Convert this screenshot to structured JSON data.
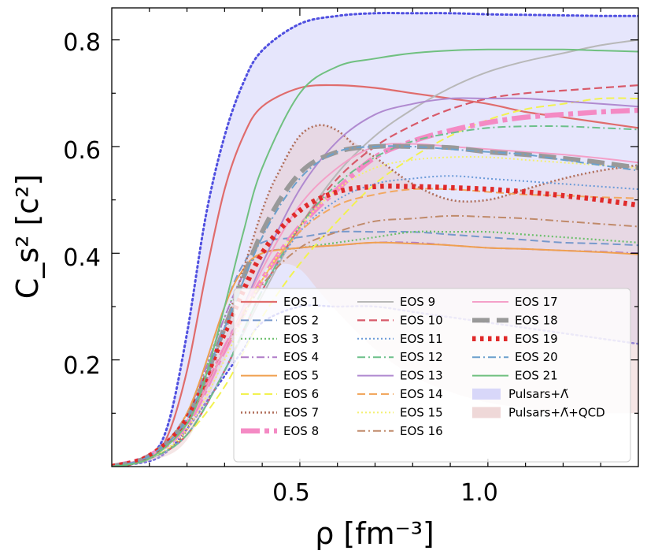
{
  "chart_data": {
    "type": "line",
    "title": "",
    "xlabel": "ρ [fm⁻³]",
    "ylabel": "C_s² [c²]",
    "xlim": [
      0.0,
      1.4
    ],
    "ylim": [
      0.0,
      0.86
    ],
    "xticks": [
      0.5,
      1.0
    ],
    "xtick_labels": [
      "0.5",
      "1.0"
    ],
    "yticks": [
      0.2,
      0.4,
      0.6,
      0.8
    ],
    "ytick_labels": [
      "0.2",
      "0.4",
      "0.6",
      "0.8"
    ],
    "grid": false,
    "legend_position": "lower-right",
    "legend_columns": 3,
    "series": [
      {
        "name": "EOS 1",
        "color": "#e06c6c",
        "dash": "solid",
        "width": 2.2,
        "x": [
          0.0,
          0.1,
          0.15,
          0.2,
          0.25,
          0.3,
          0.35,
          0.4,
          0.5,
          0.6,
          0.7,
          0.8,
          0.9,
          1.0,
          1.1,
          1.2,
          1.3,
          1.4
        ],
        "y": [
          0.0,
          0.015,
          0.06,
          0.18,
          0.36,
          0.52,
          0.62,
          0.675,
          0.71,
          0.715,
          0.71,
          0.7,
          0.69,
          0.68,
          0.665,
          0.655,
          0.645,
          0.635
        ]
      },
      {
        "name": "EOS 2",
        "color": "#7799cc",
        "dash": "10,5",
        "width": 2.0,
        "x": [
          0.0,
          0.1,
          0.2,
          0.3,
          0.35,
          0.4,
          0.5,
          0.6,
          0.7,
          0.8,
          0.9,
          1.0,
          1.1,
          1.2,
          1.3,
          1.4
        ],
        "y": [
          0.0,
          0.02,
          0.1,
          0.3,
          0.38,
          0.42,
          0.43,
          0.44,
          0.44,
          0.44,
          0.435,
          0.43,
          0.425,
          0.42,
          0.418,
          0.415
        ]
      },
      {
        "name": "EOS 3",
        "color": "#6cbf6c",
        "dash": "2,3",
        "width": 2.2,
        "x": [
          0.0,
          0.1,
          0.2,
          0.3,
          0.35,
          0.4,
          0.5,
          0.6,
          0.7,
          0.8,
          0.9,
          1.0,
          1.1,
          1.2,
          1.3,
          1.4
        ],
        "y": [
          0.0,
          0.02,
          0.1,
          0.28,
          0.36,
          0.4,
          0.41,
          0.42,
          0.43,
          0.44,
          0.44,
          0.44,
          0.435,
          0.43,
          0.425,
          0.42
        ]
      },
      {
        "name": "EOS 4",
        "color": "#b07cc8",
        "dash": "10,4,2,4",
        "width": 2.0,
        "x": [
          0.0,
          0.1,
          0.2,
          0.3,
          0.35,
          0.4,
          0.5,
          0.6,
          0.7,
          0.8,
          0.9,
          1.0,
          1.1,
          1.2,
          1.3,
          1.4
        ],
        "y": [
          0.0,
          0.02,
          0.1,
          0.28,
          0.36,
          0.4,
          0.41,
          0.415,
          0.42,
          0.42,
          0.415,
          0.41,
          0.408,
          0.405,
          0.403,
          0.4
        ]
      },
      {
        "name": "EOS 5",
        "color": "#f0a050",
        "dash": "solid",
        "width": 2.0,
        "x": [
          0.0,
          0.1,
          0.2,
          0.3,
          0.35,
          0.4,
          0.5,
          0.6,
          0.7,
          0.8,
          0.9,
          1.0,
          1.1,
          1.2,
          1.3,
          1.4
        ],
        "y": [
          0.0,
          0.02,
          0.1,
          0.3,
          0.37,
          0.4,
          0.41,
          0.415,
          0.42,
          0.418,
          0.415,
          0.41,
          0.408,
          0.405,
          0.402,
          0.398
        ]
      },
      {
        "name": "EOS 6",
        "color": "#f2f250",
        "dash": "10,5",
        "width": 2.0,
        "x": [
          0.0,
          0.1,
          0.2,
          0.3,
          0.4,
          0.5,
          0.6,
          0.7,
          0.8,
          0.9,
          1.0,
          1.1,
          1.2,
          1.3,
          1.4
        ],
        "y": [
          0.0,
          0.015,
          0.06,
          0.15,
          0.28,
          0.38,
          0.46,
          0.53,
          0.58,
          0.62,
          0.65,
          0.67,
          0.68,
          0.69,
          0.69
        ]
      },
      {
        "name": "EOS 7",
        "color": "#b06e5a",
        "dash": "2,3",
        "width": 2.6,
        "x": [
          0.0,
          0.1,
          0.2,
          0.3,
          0.4,
          0.45,
          0.5,
          0.55,
          0.6,
          0.65,
          0.7,
          0.8,
          0.9,
          1.0,
          1.1,
          1.2,
          1.3,
          1.4
        ],
        "y": [
          0.0,
          0.015,
          0.07,
          0.26,
          0.48,
          0.56,
          0.62,
          0.64,
          0.63,
          0.6,
          0.58,
          0.53,
          0.5,
          0.5,
          0.52,
          0.54,
          0.555,
          0.565
        ]
      },
      {
        "name": "EOS 8",
        "color": "#f48ac4",
        "dash": "24,6,6,6",
        "width": 6.5,
        "x": [
          0.0,
          0.1,
          0.2,
          0.3,
          0.4,
          0.5,
          0.6,
          0.7,
          0.8,
          0.9,
          1.0,
          1.1,
          1.2,
          1.3,
          1.4
        ],
        "y": [
          0.0,
          0.02,
          0.08,
          0.22,
          0.35,
          0.45,
          0.52,
          0.58,
          0.61,
          0.63,
          0.645,
          0.655,
          0.66,
          0.665,
          0.668
        ]
      },
      {
        "name": "EOS 9",
        "color": "#b8b8b8",
        "dash": "solid",
        "width": 2.0,
        "x": [
          0.0,
          0.1,
          0.2,
          0.3,
          0.4,
          0.5,
          0.6,
          0.7,
          0.8,
          0.9,
          1.0,
          1.1,
          1.2,
          1.3,
          1.4
        ],
        "y": [
          0.0,
          0.015,
          0.06,
          0.18,
          0.32,
          0.45,
          0.55,
          0.62,
          0.67,
          0.71,
          0.74,
          0.76,
          0.775,
          0.79,
          0.8
        ]
      },
      {
        "name": "EOS 10",
        "color": "#d85a6a",
        "dash": "10,5",
        "width": 2.2,
        "x": [
          0.0,
          0.1,
          0.2,
          0.3,
          0.4,
          0.5,
          0.6,
          0.7,
          0.8,
          0.9,
          1.0,
          1.1,
          1.2,
          1.3,
          1.4
        ],
        "y": [
          0.0,
          0.015,
          0.06,
          0.18,
          0.33,
          0.45,
          0.54,
          0.6,
          0.64,
          0.67,
          0.69,
          0.7,
          0.705,
          0.71,
          0.715
        ]
      },
      {
        "name": "EOS 11",
        "color": "#6a9ad8",
        "dash": "2,3",
        "width": 2.0,
        "x": [
          0.0,
          0.1,
          0.2,
          0.3,
          0.4,
          0.5,
          0.6,
          0.7,
          0.8,
          0.9,
          1.0,
          1.1,
          1.2,
          1.3,
          1.4
        ],
        "y": [
          0.0,
          0.015,
          0.06,
          0.18,
          0.33,
          0.44,
          0.5,
          0.53,
          0.54,
          0.545,
          0.54,
          0.535,
          0.53,
          0.525,
          0.52
        ]
      },
      {
        "name": "EOS 12",
        "color": "#6cc08a",
        "dash": "10,4,2,4",
        "width": 2.0,
        "x": [
          0.0,
          0.1,
          0.2,
          0.3,
          0.4,
          0.5,
          0.6,
          0.7,
          0.8,
          0.9,
          1.0,
          1.1,
          1.2,
          1.3,
          1.4
        ],
        "y": [
          0.0,
          0.015,
          0.06,
          0.18,
          0.33,
          0.45,
          0.53,
          0.58,
          0.61,
          0.625,
          0.635,
          0.638,
          0.638,
          0.635,
          0.632
        ]
      },
      {
        "name": "EOS 13",
        "color": "#b08ad0",
        "dash": "solid",
        "width": 2.0,
        "x": [
          0.0,
          0.1,
          0.2,
          0.3,
          0.4,
          0.5,
          0.6,
          0.7,
          0.8,
          0.9,
          1.0,
          1.1,
          1.2,
          1.3,
          1.4
        ],
        "y": [
          0.0,
          0.02,
          0.08,
          0.22,
          0.38,
          0.52,
          0.61,
          0.66,
          0.68,
          0.69,
          0.69,
          0.69,
          0.685,
          0.68,
          0.675
        ]
      },
      {
        "name": "EOS 14",
        "color": "#f2a860",
        "dash": "10,5",
        "width": 2.0,
        "x": [
          0.0,
          0.1,
          0.2,
          0.3,
          0.4,
          0.5,
          0.6,
          0.7,
          0.8,
          0.9,
          1.0,
          1.1,
          1.2,
          1.3,
          1.4
        ],
        "y": [
          0.0,
          0.02,
          0.08,
          0.22,
          0.35,
          0.44,
          0.49,
          0.51,
          0.52,
          0.52,
          0.515,
          0.51,
          0.508,
          0.505,
          0.503
        ]
      },
      {
        "name": "EOS 15",
        "color": "#f4f070",
        "dash": "2,3",
        "width": 2.0,
        "x": [
          0.0,
          0.1,
          0.2,
          0.3,
          0.4,
          0.5,
          0.6,
          0.7,
          0.8,
          0.9,
          1.0,
          1.1,
          1.2,
          1.3,
          1.4
        ],
        "y": [
          0.0,
          0.015,
          0.07,
          0.2,
          0.35,
          0.45,
          0.52,
          0.56,
          0.575,
          0.58,
          0.58,
          0.575,
          0.57,
          0.565,
          0.56
        ]
      },
      {
        "name": "EOS 16",
        "color": "#c08a6a",
        "dash": "10,4,2,4",
        "width": 2.0,
        "x": [
          0.0,
          0.1,
          0.2,
          0.3,
          0.4,
          0.5,
          0.6,
          0.7,
          0.8,
          0.9,
          1.0,
          1.1,
          1.2,
          1.3,
          1.4
        ],
        "y": [
          0.0,
          0.02,
          0.08,
          0.22,
          0.34,
          0.41,
          0.44,
          0.46,
          0.465,
          0.47,
          0.468,
          0.465,
          0.46,
          0.455,
          0.45
        ]
      },
      {
        "name": "EOS 17",
        "color": "#f4a0c8",
        "dash": "solid",
        "width": 2.0,
        "x": [
          0.0,
          0.1,
          0.2,
          0.3,
          0.4,
          0.5,
          0.6,
          0.7,
          0.8,
          0.9,
          1.0,
          1.1,
          1.2,
          1.3,
          1.4
        ],
        "y": [
          0.0,
          0.02,
          0.08,
          0.22,
          0.37,
          0.49,
          0.56,
          0.6,
          0.605,
          0.6,
          0.595,
          0.59,
          0.585,
          0.578,
          0.57
        ]
      },
      {
        "name": "EOS 18",
        "color": "#999999",
        "dash": "22,9",
        "width": 6.0,
        "x": [
          0.0,
          0.1,
          0.2,
          0.3,
          0.4,
          0.5,
          0.6,
          0.7,
          0.8,
          0.9,
          1.0,
          1.1,
          1.2,
          1.3,
          1.4
        ],
        "y": [
          0.0,
          0.02,
          0.09,
          0.26,
          0.44,
          0.55,
          0.59,
          0.6,
          0.6,
          0.598,
          0.59,
          0.585,
          0.578,
          0.57,
          0.56
        ]
      },
      {
        "name": "EOS 19",
        "color": "#e02a2a",
        "dash": "4.5,5.5",
        "width": 6.5,
        "x": [
          0.0,
          0.1,
          0.2,
          0.3,
          0.4,
          0.5,
          0.6,
          0.7,
          0.8,
          0.9,
          1.0,
          1.1,
          1.2,
          1.3,
          1.4
        ],
        "y": [
          0.0,
          0.02,
          0.09,
          0.25,
          0.4,
          0.48,
          0.515,
          0.525,
          0.525,
          0.523,
          0.52,
          0.515,
          0.508,
          0.5,
          0.49
        ]
      },
      {
        "name": "EOS 20",
        "color": "#6ba0cc",
        "dash": "10,4,2,4",
        "width": 2.0,
        "x": [
          0.0,
          0.1,
          0.2,
          0.3,
          0.4,
          0.5,
          0.6,
          0.7,
          0.8,
          0.9,
          1.0,
          1.1,
          1.2,
          1.3,
          1.4
        ],
        "y": [
          0.0,
          0.02,
          0.09,
          0.26,
          0.43,
          0.54,
          0.59,
          0.6,
          0.6,
          0.595,
          0.59,
          0.585,
          0.575,
          0.565,
          0.555
        ]
      },
      {
        "name": "EOS 21",
        "color": "#70c080",
        "dash": "solid",
        "width": 2.0,
        "x": [
          0.0,
          0.1,
          0.2,
          0.25,
          0.3,
          0.35,
          0.4,
          0.5,
          0.6,
          0.7,
          0.8,
          0.9,
          1.0,
          1.1,
          1.2,
          1.3,
          1.4
        ],
        "y": [
          0.0,
          0.015,
          0.08,
          0.17,
          0.3,
          0.44,
          0.56,
          0.7,
          0.75,
          0.765,
          0.775,
          0.78,
          0.782,
          0.782,
          0.782,
          0.78,
          0.778
        ]
      }
    ],
    "bands": [
      {
        "name": "Pulsars+Λ̃",
        "fill": "#c8c8f8",
        "opacity": 0.45,
        "x": [
          0.0,
          0.1,
          0.15,
          0.2,
          0.25,
          0.3,
          0.35,
          0.4,
          0.5,
          0.6,
          0.7,
          0.8,
          0.9,
          1.0,
          1.1,
          1.2,
          1.3,
          1.4
        ],
        "upper": [
          0.0,
          0.02,
          0.08,
          0.25,
          0.47,
          0.62,
          0.72,
          0.78,
          0.83,
          0.845,
          0.85,
          0.85,
          0.85,
          0.848,
          0.847,
          0.846,
          0.845,
          0.845
        ],
        "lower": [
          0.0,
          0.01,
          0.03,
          0.07,
          0.12,
          0.17,
          0.22,
          0.27,
          0.3,
          0.3,
          0.3,
          0.29,
          0.28,
          0.27,
          0.26,
          0.25,
          0.24,
          0.23
        ],
        "edge_color": "#5050e0"
      },
      {
        "name": "Pulsars+Λ̃+QCD",
        "fill": "#e8c8c8",
        "opacity": 0.45,
        "x": [
          0.0,
          0.1,
          0.2,
          0.3,
          0.4,
          0.45,
          0.5,
          0.55,
          0.6,
          0.7,
          0.8,
          0.9,
          1.0,
          1.1,
          1.2,
          1.3,
          1.4
        ],
        "upper": [
          0.0,
          0.015,
          0.07,
          0.26,
          0.48,
          0.56,
          0.62,
          0.64,
          0.63,
          0.58,
          0.53,
          0.5,
          0.5,
          0.52,
          0.54,
          0.555,
          0.565
        ],
        "lower": [
          0.0,
          0.01,
          0.05,
          0.2,
          0.36,
          0.38,
          0.37,
          0.33,
          0.29,
          0.22,
          0.17,
          0.14,
          0.12,
          0.11,
          0.1,
          0.1,
          0.1
        ]
      }
    ]
  }
}
